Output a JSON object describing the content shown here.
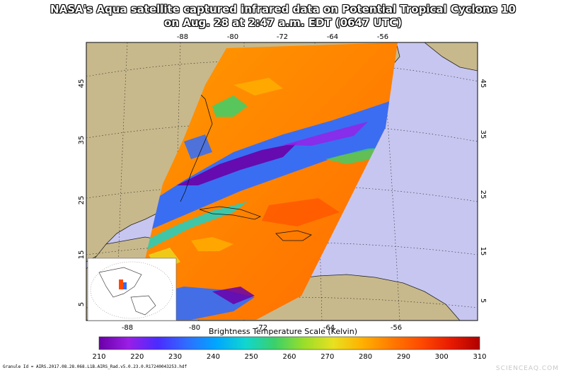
{
  "title": {
    "line1": "NASA's Aqua satellite captured infrared data on Potential Tropical Cyclone 10",
    "line2": "on Aug. 28 at 2:47 a.m. EDT (0647 UTC)"
  },
  "map": {
    "lon_ticks": [
      "-88",
      "-80",
      "-72",
      "-64",
      "-56"
    ],
    "lat_ticks": [
      "45",
      "35",
      "25",
      "15",
      "5"
    ]
  },
  "colorbar": {
    "title": "Brightness Temperature Scale (Kelvin)",
    "labels": [
      "210",
      "220",
      "230",
      "240",
      "250",
      "260",
      "270",
      "280",
      "290",
      "300",
      "310"
    ],
    "colors": [
      "#6a00a8",
      "#9a1ee6",
      "#4b2bff",
      "#2f6dff",
      "#00a6ff",
      "#10d6d0",
      "#3bd06a",
      "#9ade2a",
      "#e8e020",
      "#ffb000",
      "#ff7a00",
      "#ff4a00",
      "#e81a00",
      "#b00000"
    ]
  },
  "colors": {
    "ocean": "#c7c6f0",
    "land": "#c8b98c",
    "frame": "#2a2a2a"
  },
  "footer": "Granule Id = AIRS.2017.08.28.068.L1B.AIRS_Rad.v5.0.23.0.R17240043253.hdf",
  "watermark": "SCIENCEAQ.COM"
}
